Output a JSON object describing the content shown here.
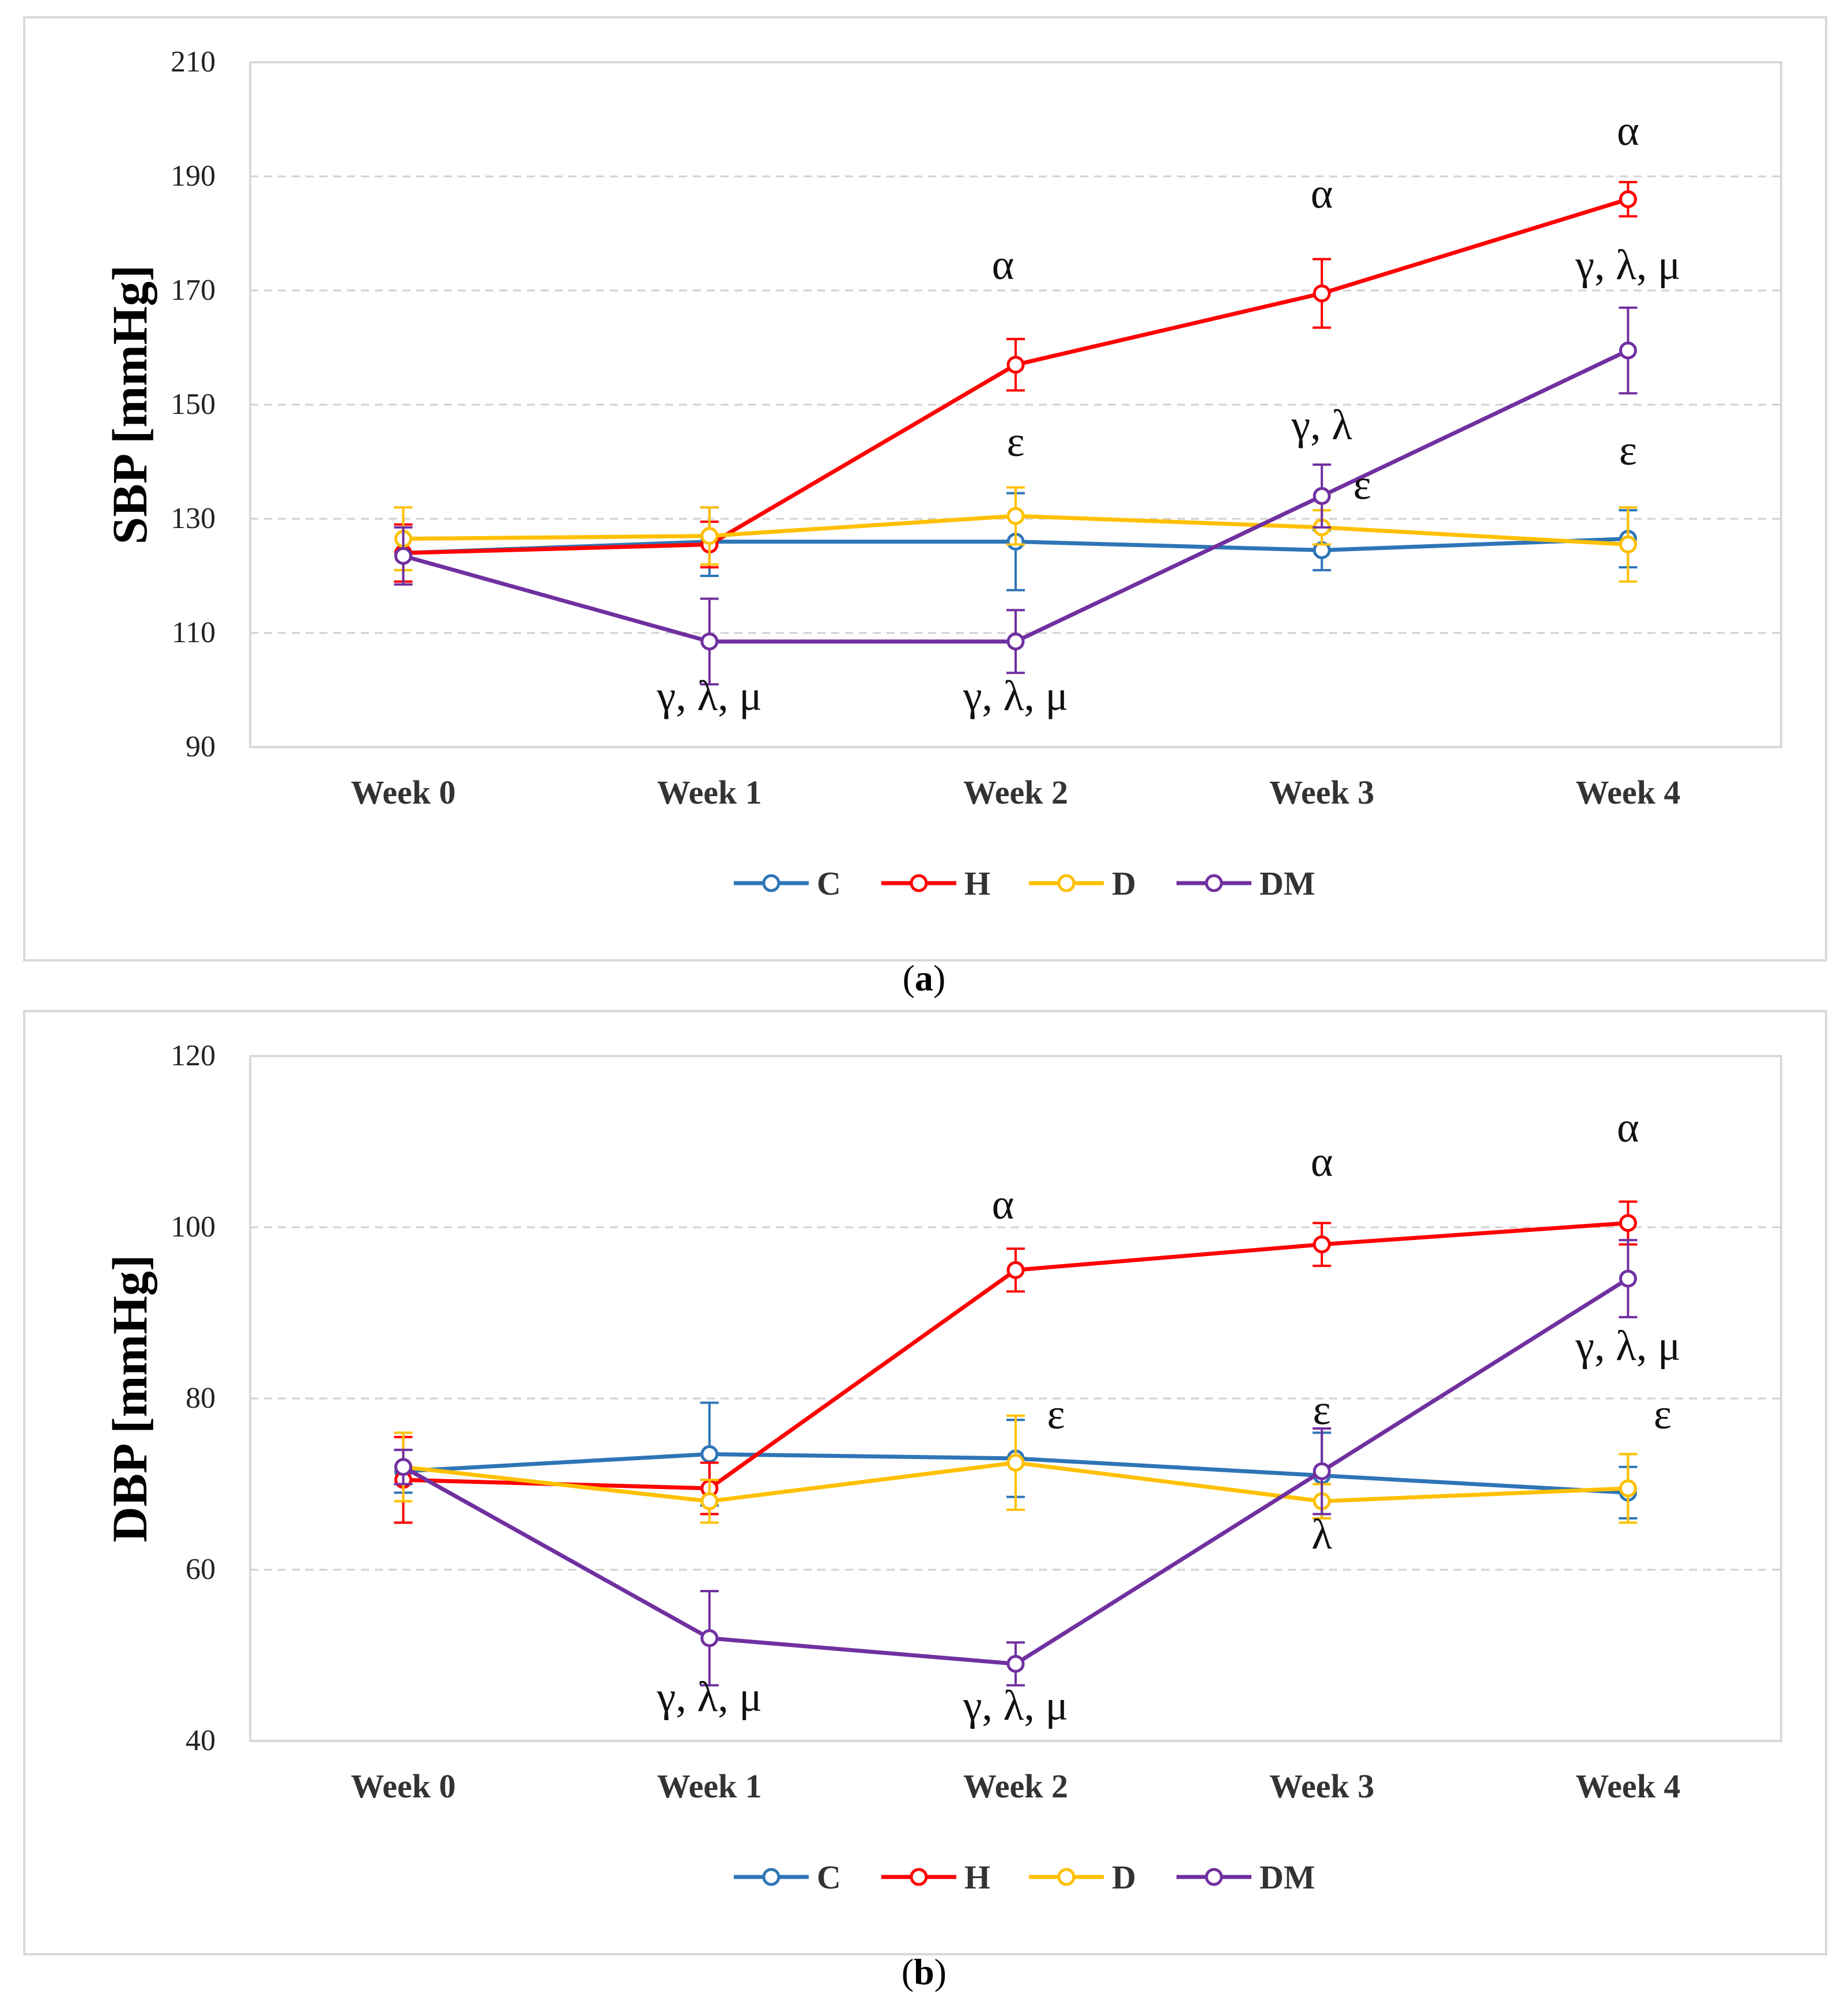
{
  "colors": {
    "C": "#2e75b6",
    "H": "#ff0000",
    "D": "#ffc000",
    "DM": "#7030a0",
    "grid": "#d0d0d0",
    "frame": "#d9d9d9"
  },
  "legend": [
    {
      "key": "C",
      "label": "C"
    },
    {
      "key": "H",
      "label": "H"
    },
    {
      "key": "D",
      "label": "D"
    },
    {
      "key": "DM",
      "label": "DM"
    }
  ],
  "captions": {
    "a_open": "(",
    "a_letter": "a",
    "a_close": ")",
    "b_open": "(",
    "b_letter": "b",
    "b_close": ")"
  },
  "chart_data": [
    {
      "panel": "a",
      "type": "line",
      "ylabel": "SBP [mmHg]",
      "categories": [
        "Week 0",
        "Week 1",
        "Week 2",
        "Week 3",
        "Week 4"
      ],
      "ylim": [
        90,
        210
      ],
      "yticks": [
        90,
        110,
        130,
        150,
        170,
        190,
        210
      ],
      "grid": "dashed horizontal",
      "legend_position": "bottom",
      "series": [
        {
          "name": "C",
          "values": [
            124,
            126,
            126,
            124.5,
            126.5
          ],
          "errors": [
            5,
            6,
            8.5,
            3.5,
            5
          ]
        },
        {
          "name": "H",
          "values": [
            124,
            125.5,
            157,
            169.5,
            186
          ],
          "errors": [
            5,
            4,
            4.5,
            6,
            3
          ]
        },
        {
          "name": "D",
          "values": [
            126.5,
            127,
            130.5,
            128.5,
            125.5
          ],
          "errors": [
            5.5,
            5,
            5,
            3,
            6.5
          ]
        },
        {
          "name": "DM",
          "values": [
            123.5,
            108.5,
            108.5,
            134,
            159.5
          ],
          "errors": [
            5,
            7.5,
            5.5,
            5.5,
            7.5
          ]
        }
      ],
      "annotations": [
        {
          "text": "α",
          "category": "Week 2",
          "y": 172
        },
        {
          "text": "α",
          "category": "Week 3",
          "y": 184.5
        },
        {
          "text": "α",
          "category": "Week 4",
          "y": 195.5
        },
        {
          "text": "γ, λ, μ",
          "category": "Week 4",
          "y": 172
        },
        {
          "text": "ε",
          "category": "Week 2",
          "y": 141
        },
        {
          "text": "γ, λ",
          "category": "Week 3",
          "y": 144
        },
        {
          "text": "ε",
          "category": "Week 3",
          "y": 133.5
        },
        {
          "text": "ε",
          "category": "Week 4",
          "y": 139.5
        },
        {
          "text": "γ, λ, μ",
          "category": "Week 1",
          "y": 96.5
        },
        {
          "text": "γ, λ, μ",
          "category": "Week 2",
          "y": 96.5
        }
      ]
    },
    {
      "panel": "b",
      "type": "line",
      "ylabel": "DBP [mmHg]",
      "categories": [
        "Week 0",
        "Week 1",
        "Week 2",
        "Week 3",
        "Week 4"
      ],
      "ylim": [
        40,
        120
      ],
      "yticks": [
        40,
        60,
        80,
        100,
        120
      ],
      "grid": "dashed horizontal",
      "legend_position": "bottom",
      "series": [
        {
          "name": "C",
          "values": [
            71.5,
            73.5,
            73,
            71,
            69
          ],
          "errors": [
            2.5,
            6,
            4.5,
            5,
            3
          ]
        },
        {
          "name": "H",
          "values": [
            70.5,
            69.5,
            95,
            98,
            100.5
          ],
          "errors": [
            5,
            3,
            2.5,
            2.5,
            2.5
          ]
        },
        {
          "name": "D",
          "values": [
            72,
            68,
            72.5,
            68,
            69.5
          ],
          "errors": [
            4,
            2.5,
            5.5,
            2,
            4
          ]
        },
        {
          "name": "DM",
          "values": [
            72,
            52,
            49,
            71.5,
            94
          ],
          "errors": [
            2,
            5.5,
            2.5,
            5,
            4.5
          ]
        }
      ],
      "annotations": [
        {
          "text": "α",
          "category": "Week 2",
          "y": 101
        },
        {
          "text": "α",
          "category": "Week 3",
          "y": 106
        },
        {
          "text": "α",
          "category": "Week 4",
          "y": 110
        },
        {
          "text": "γ, λ, μ",
          "category": "Week 4",
          "y": 84.5
        },
        {
          "text": "ε",
          "category": "Week 2",
          "y": 76.5
        },
        {
          "text": "ε",
          "category": "Week 3",
          "y": 77
        },
        {
          "text": "ε",
          "category": "Week 4",
          "y": 76.5
        },
        {
          "text": "λ",
          "category": "Week 3",
          "y": 62.5
        },
        {
          "text": "γ, λ, μ",
          "category": "Week 1",
          "y": 43.5
        },
        {
          "text": "γ, λ, μ",
          "category": "Week 2",
          "y": 42.5
        }
      ]
    }
  ]
}
